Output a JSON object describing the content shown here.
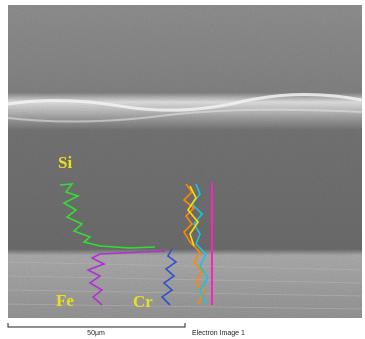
{
  "labels": {
    "si": "Si",
    "fe": "Fe",
    "cr": "Cr"
  },
  "scale_bar": {
    "label": "50µm"
  },
  "caption": "Electron Image 1"
}
